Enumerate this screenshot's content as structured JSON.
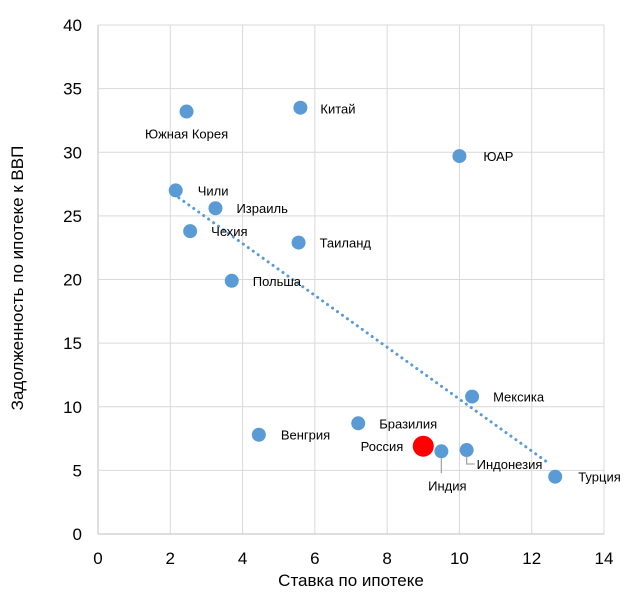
{
  "chart_data": {
    "type": "scatter",
    "xlabel": "Ставка по ипотеке",
    "ylabel": "Задолженность по ипотеке к ВВП",
    "xlim": [
      0,
      14
    ],
    "ylim": [
      0,
      40
    ],
    "xticks": [
      "0",
      "2",
      "4",
      "6",
      "8",
      "10",
      "12",
      "14"
    ],
    "yticks": [
      "0",
      "5",
      "10",
      "15",
      "20",
      "25",
      "30",
      "35",
      "40"
    ],
    "grid": true,
    "legend": "none",
    "trendline": {
      "type": "linear",
      "style": "dotted",
      "x": [
        2.1,
        12.5
      ],
      "y": [
        26.7,
        5.5
      ]
    },
    "points": [
      {
        "label": "Южная Корея",
        "x": 2.45,
        "y": 33.2
      },
      {
        "label": "Китай",
        "x": 5.6,
        "y": 33.5
      },
      {
        "label": "ЮАР",
        "x": 10.0,
        "y": 29.7
      },
      {
        "label": "Чили",
        "x": 2.15,
        "y": 27.0
      },
      {
        "label": "Израиль",
        "x": 3.25,
        "y": 25.6
      },
      {
        "label": "Чехия",
        "x": 2.55,
        "y": 23.8
      },
      {
        "label": "Таиланд",
        "x": 5.55,
        "y": 22.9
      },
      {
        "label": "Польша",
        "x": 3.7,
        "y": 19.9
      },
      {
        "label": "Мексика",
        "x": 10.35,
        "y": 10.8
      },
      {
        "label": "Бразилия",
        "x": 7.2,
        "y": 8.7
      },
      {
        "label": "Венгрия",
        "x": 4.45,
        "y": 7.8
      },
      {
        "label": "Россия",
        "x": 9.0,
        "y": 6.9,
        "highlight": true
      },
      {
        "label": "Индия",
        "x": 9.5,
        "y": 6.5
      },
      {
        "label": "Индонезия",
        "x": 10.2,
        "y": 6.6
      },
      {
        "label": "Турция",
        "x": 12.65,
        "y": 4.5
      }
    ],
    "colors": {
      "point": "#5b9bd5",
      "highlight": "#ff0000",
      "trend": "#5b9bd5"
    }
  }
}
